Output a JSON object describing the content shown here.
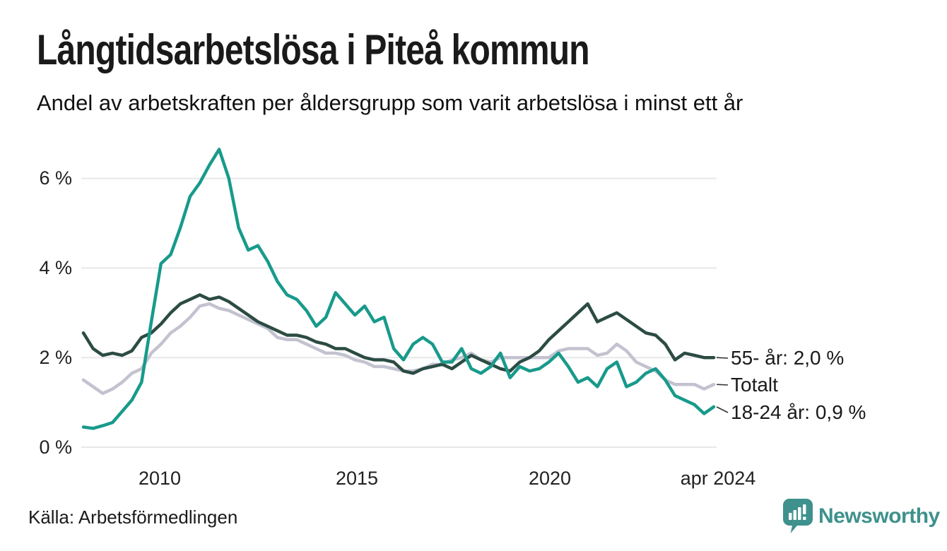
{
  "header": {
    "title": "Långtidsarbetslösa i Piteå kommun",
    "subtitle": "Andel av arbetskraften per åldersgrupp som varit arbetslösa i minst ett år"
  },
  "axes": {
    "y": {
      "labels": [
        "6 %",
        "4 %",
        "2 %",
        "0 %"
      ],
      "values": [
        6,
        4,
        2,
        0
      ]
    },
    "x": {
      "labels": [
        "2010",
        "2015",
        "2020",
        "apr 2024"
      ],
      "positions": [
        2010,
        2015,
        2020,
        2024.25
      ]
    }
  },
  "annotations": {
    "series_55": "55- år: 2,0 %",
    "series_total": "Totalt",
    "series_1824": "18-24 år: 0,9 %"
  },
  "footer": {
    "source": "Källa: Arbetsförmedlingen",
    "brand": "Newsworthy"
  },
  "colors": {
    "teal_line": "#189a8b",
    "dark_green_line": "#2c4c43",
    "gray_line": "#c3c2d0",
    "gridline": "#e8e8eb",
    "connector": "#333333",
    "brand_teal": "#3e918c",
    "text": "#1a1a1a"
  },
  "chart_data": {
    "type": "line",
    "title": "Långtidsarbetslösa i Piteå kommun",
    "subtitle": "Andel av arbetskraften per åldersgrupp som varit arbetslösa i minst ett år",
    "unit": "% av arbetskraften",
    "x_start": 2008.0,
    "x_step_years": 0.25,
    "x_end": 2024.25,
    "x_end_label": "apr 2024",
    "ylim": [
      0,
      7
    ],
    "grid": true,
    "legend_position": "right-end-labels",
    "x_tick_labels": [
      "2010",
      "2015",
      "2020",
      "apr 2024"
    ],
    "y_tick_labels": [
      "0 %",
      "2 %",
      "4 %",
      "6 %"
    ],
    "series": [
      {
        "name": "55- år",
        "end_label": "55- år: 2,0 %",
        "last_value": 2.0,
        "color": "#2c4c43",
        "values": [
          2.55,
          2.2,
          2.05,
          2.1,
          2.05,
          2.15,
          2.45,
          2.55,
          2.75,
          3.0,
          3.2,
          3.3,
          3.4,
          3.3,
          3.35,
          3.25,
          3.1,
          2.95,
          2.8,
          2.7,
          2.6,
          2.5,
          2.5,
          2.45,
          2.35,
          2.3,
          2.2,
          2.2,
          2.1,
          2.0,
          1.95,
          1.95,
          1.9,
          1.7,
          1.65,
          1.75,
          1.8,
          1.85,
          1.75,
          1.9,
          2.05,
          1.95,
          1.85,
          1.75,
          1.7,
          1.9,
          2.0,
          2.15,
          2.4,
          2.6,
          2.8,
          3.0,
          3.2,
          2.8,
          2.9,
          3.0,
          2.85,
          2.7,
          2.55,
          2.5,
          2.3,
          1.95,
          2.1,
          2.05,
          2.0,
          2.0
        ]
      },
      {
        "name": "Totalt",
        "end_label": "Totalt",
        "last_value": 1.4,
        "color": "#c3c2d0",
        "values": [
          1.5,
          1.35,
          1.2,
          1.3,
          1.45,
          1.65,
          1.75,
          2.1,
          2.3,
          2.55,
          2.7,
          2.9,
          3.15,
          3.2,
          3.1,
          3.05,
          2.95,
          2.85,
          2.75,
          2.65,
          2.45,
          2.4,
          2.4,
          2.3,
          2.2,
          2.1,
          2.1,
          2.05,
          1.95,
          1.9,
          1.8,
          1.8,
          1.75,
          1.7,
          1.7,
          1.75,
          1.85,
          1.85,
          1.95,
          2.0,
          2.1,
          1.95,
          1.9,
          2.0,
          2.0,
          2.0,
          2.0,
          2.0,
          2.0,
          2.15,
          2.2,
          2.2,
          2.2,
          2.05,
          2.1,
          2.3,
          2.15,
          1.9,
          1.8,
          1.7,
          1.5,
          1.4,
          1.4,
          1.4,
          1.3,
          1.4
        ]
      },
      {
        "name": "18-24 år",
        "end_label": "18-24 år: 0,9 %",
        "last_value": 0.9,
        "color": "#189a8b",
        "values": [
          0.45,
          0.42,
          0.48,
          0.55,
          0.8,
          1.05,
          1.45,
          2.8,
          4.1,
          4.3,
          4.9,
          5.6,
          5.9,
          6.3,
          6.65,
          6.0,
          4.9,
          4.4,
          4.5,
          4.15,
          3.7,
          3.4,
          3.3,
          3.05,
          2.7,
          2.9,
          3.45,
          3.2,
          2.95,
          3.15,
          2.8,
          2.9,
          2.2,
          1.95,
          2.3,
          2.45,
          2.3,
          1.9,
          1.9,
          2.2,
          1.75,
          1.65,
          1.8,
          2.1,
          1.55,
          1.8,
          1.7,
          1.75,
          1.9,
          2.1,
          1.8,
          1.45,
          1.55,
          1.35,
          1.75,
          1.9,
          1.35,
          1.45,
          1.65,
          1.75,
          1.5,
          1.15,
          1.05,
          0.95,
          0.75,
          0.9
        ]
      }
    ]
  }
}
